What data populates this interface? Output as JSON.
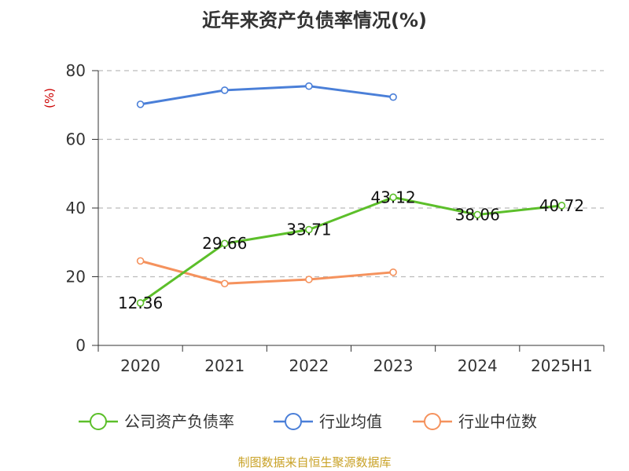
{
  "chart_data": {
    "type": "line",
    "title": "近年来资产负债率情况(%)",
    "ylabel": "(%)",
    "xlabel": "",
    "categories": [
      "2020",
      "2021",
      "2022",
      "2023",
      "2024",
      "2025H1"
    ],
    "ylim": [
      0,
      80
    ],
    "yticks": [
      0,
      20,
      40,
      60,
      80
    ],
    "grid": true,
    "legend_position": "bottom",
    "series": [
      {
        "name": "公司资产负债率",
        "color": "#5cbf2a",
        "values": [
          12.36,
          29.66,
          33.71,
          43.12,
          38.06,
          40.72
        ],
        "show_labels": true
      },
      {
        "name": "行业均值",
        "color": "#4a7fd8",
        "values": [
          70.2,
          74.3,
          75.5,
          72.3,
          null,
          null
        ],
        "show_labels": false
      },
      {
        "name": "行业中位数",
        "color": "#f5925d",
        "values": [
          24.6,
          18.0,
          19.2,
          21.3,
          null,
          null
        ],
        "show_labels": false
      }
    ]
  },
  "source": "制图数据来自恒生聚源数据库"
}
